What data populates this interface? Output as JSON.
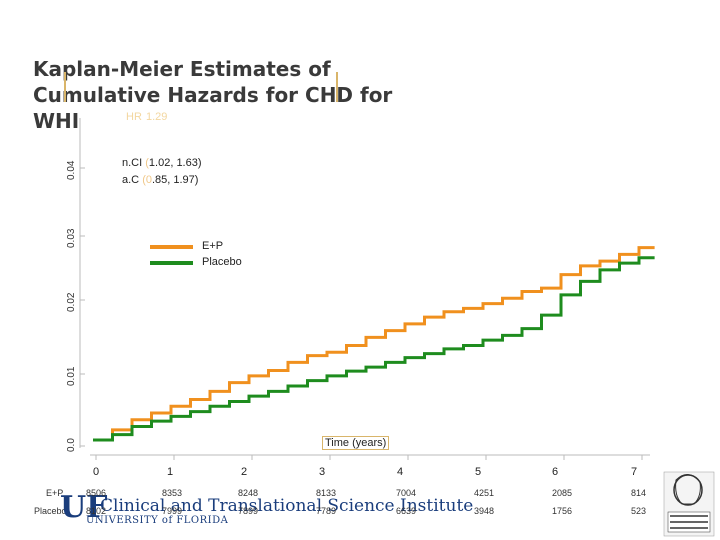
{
  "chart_data": {
    "type": "line",
    "title": "Kaplan-Meier Estimates of Cumulative Hazards for CHD for WHI",
    "xlabel": "Time (years)",
    "ylabel": "",
    "xlim": [
      0,
      7.2
    ],
    "ylim": [
      0,
      0.045
    ],
    "yticks": [
      "0.0",
      "0.01",
      "0.02",
      "0.03",
      "0.04"
    ],
    "xticks": [
      "0",
      "1",
      "2",
      "3",
      "4",
      "5",
      "6",
      "7"
    ],
    "annotations": {
      "hr": {
        "label": "HR",
        "value": "1.29"
      },
      "ci_lines": [
        {
          "label": "n.CI",
          "value": "1.02, 1.63"
        },
        {
          "label": "a.C",
          "value": ".85, 1.97"
        }
      ]
    },
    "series": [
      {
        "name": "E+P",
        "color": "#f0901e",
        "x": [
          0,
          0.25,
          0.5,
          0.75,
          1.0,
          1.25,
          1.5,
          1.75,
          2.0,
          2.25,
          2.5,
          2.75,
          3.0,
          3.25,
          3.5,
          3.75,
          4.0,
          4.25,
          4.5,
          4.75,
          5.0,
          5.25,
          5.5,
          5.75,
          6.0,
          6.25,
          6.5,
          6.75,
          7.0,
          7.2
        ],
        "values": [
          0,
          0.0015,
          0.003,
          0.004,
          0.005,
          0.006,
          0.0072,
          0.0085,
          0.0095,
          0.0103,
          0.0115,
          0.0125,
          0.013,
          0.014,
          0.0152,
          0.0162,
          0.0172,
          0.0182,
          0.019,
          0.0195,
          0.0202,
          0.021,
          0.022,
          0.0225,
          0.0245,
          0.0258,
          0.0265,
          0.0275,
          0.0285,
          0.0285
        ]
      },
      {
        "name": "Placebo",
        "color": "#1e8c1e",
        "x": [
          0,
          0.25,
          0.5,
          0.75,
          1.0,
          1.25,
          1.5,
          1.75,
          2.0,
          2.25,
          2.5,
          2.75,
          3.0,
          3.25,
          3.5,
          3.75,
          4.0,
          4.25,
          4.5,
          4.75,
          5.0,
          5.25,
          5.5,
          5.75,
          6.0,
          6.25,
          6.5,
          6.75,
          7.0,
          7.2
        ],
        "values": [
          0,
          0.0008,
          0.002,
          0.0028,
          0.0035,
          0.0042,
          0.005,
          0.0057,
          0.0065,
          0.0072,
          0.008,
          0.0088,
          0.0095,
          0.0102,
          0.0108,
          0.0115,
          0.0122,
          0.0128,
          0.0135,
          0.014,
          0.0148,
          0.0155,
          0.0165,
          0.0185,
          0.0215,
          0.0235,
          0.0252,
          0.0262,
          0.027,
          0.027
        ]
      }
    ],
    "legend_position": "top-center"
  },
  "risk_table": {
    "rows": [
      {
        "label": "E+P",
        "values": [
          "8506",
          "8353",
          "8248",
          "8133",
          "7004",
          "4251",
          "2085",
          "814"
        ]
      },
      {
        "label": "Placebo",
        "values": [
          "8102",
          "7999",
          "7899",
          "7789",
          "6639",
          "3948",
          "1756",
          "523"
        ]
      }
    ]
  },
  "branding": {
    "uf": "UF",
    "institute": "Clinical and Translational Science Institute",
    "university": "UNIVERSITY of FLORIDA"
  }
}
